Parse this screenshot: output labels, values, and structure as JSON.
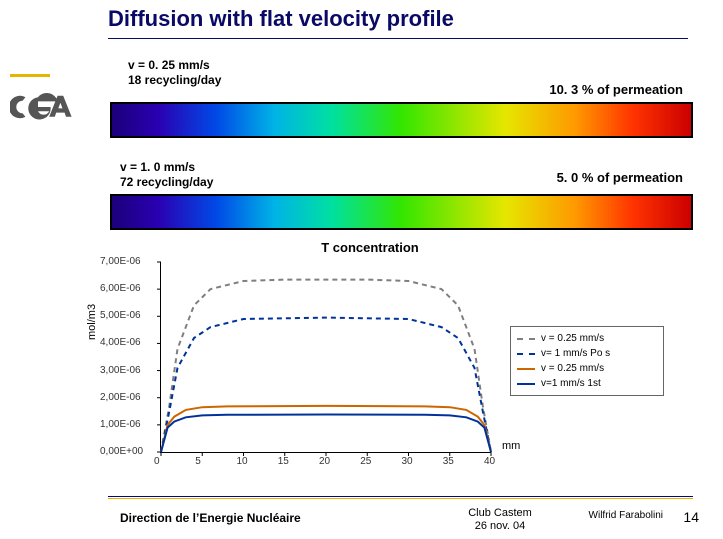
{
  "title": "Diffusion with flat velocity profile",
  "title_color": "#0a0a66",
  "logo": {
    "fill": "#555555"
  },
  "cases": [
    {
      "velocity": "v = 0. 25 mm/s",
      "recycling": "18 recycling/day",
      "permeation": "10. 3 % of permeation"
    },
    {
      "velocity": "v = 1. 0 mm/s",
      "recycling": "72 recycling/day",
      "permeation": "5. 0 % of permeation"
    }
  ],
  "spectrum": {
    "frame_color": "#000000",
    "stops": [
      "#1b007a",
      "#2a00b2",
      "#0049e6",
      "#00b3e6",
      "#00e0a0",
      "#33e600",
      "#e6e600",
      "#ff9900",
      "#ff3300",
      "#cc0000"
    ]
  },
  "chart": {
    "type": "line",
    "title": "T concentration",
    "ylabel": "mol/m3",
    "xunit": "mm",
    "x": [
      0,
      5,
      10,
      15,
      20,
      25,
      30,
      35,
      40
    ],
    "xlim": [
      0,
      40
    ],
    "ylim": [
      0,
      7e-06
    ],
    "yticks": [
      0,
      1e-06,
      2e-06,
      3e-06,
      4e-06,
      5e-06,
      6e-06,
      7e-06
    ],
    "ytick_labels": [
      "0,00E+00",
      "1,00E-06",
      "2,00E-06",
      "3,00E-06",
      "4,00E-06",
      "5,00E-06",
      "6,00E-06",
      "7,00E-06"
    ],
    "background_color": "#ffffff",
    "grid": false,
    "line_width": 2,
    "legend_border": "#666666",
    "series": [
      {
        "name": "v = 0.25 mm/s",
        "color": "#7f7f7f",
        "dash": true,
        "x": [
          0,
          1,
          2,
          4,
          6,
          10,
          15,
          20,
          25,
          30,
          34,
          36,
          38,
          39,
          40
        ],
        "y": [
          0.0,
          1.7e-06,
          3.8e-06,
          5.4e-06,
          6e-06,
          6.3e-06,
          6.35e-06,
          6.35e-06,
          6.35e-06,
          6.3e-06,
          6e-06,
          5.4e-06,
          3.8e-06,
          1.7e-06,
          0.0
        ]
      },
      {
        "name": "v= 1 mm/s Po s",
        "color": "#003399",
        "dash": true,
        "x": [
          0,
          1,
          2,
          4,
          6,
          10,
          20,
          30,
          34,
          36,
          38,
          39,
          40
        ],
        "y": [
          0.0,
          1.5e-06,
          3.1e-06,
          4.2e-06,
          4.6e-06,
          4.9e-06,
          4.95e-06,
          4.9e-06,
          4.6e-06,
          4.2e-06,
          3.1e-06,
          1.5e-06,
          0.0
        ]
      },
      {
        "name": "v = 0.25 mm/s",
        "color": "#cc6600",
        "dash": false,
        "x": [
          0,
          0.8,
          1.6,
          3,
          5,
          8,
          20,
          32,
          35,
          37,
          38.4,
          39.2,
          40
        ],
        "y": [
          0.0,
          1e-06,
          1.3e-06,
          1.55e-06,
          1.65e-06,
          1.68e-06,
          1.7e-06,
          1.68e-06,
          1.65e-06,
          1.55e-06,
          1.3e-06,
          1e-06,
          0.0
        ]
      },
      {
        "name": "v=1 mm/s 1st",
        "color": "#003399",
        "dash": false,
        "x": [
          0,
          0.8,
          1.6,
          3,
          5,
          8,
          20,
          32,
          35,
          37,
          38.4,
          39.2,
          40
        ],
        "y": [
          0.0,
          9e-07,
          1.12e-06,
          1.28e-06,
          1.35e-06,
          1.37e-06,
          1.38e-06,
          1.37e-06,
          1.35e-06,
          1.28e-06,
          1.12e-06,
          9e-07,
          0.0
        ]
      }
    ]
  },
  "footer": {
    "org": "Direction de l’Energie Nucléaire",
    "event": "Club Castem",
    "date": "26 nov. 04",
    "author": "Wilfrid Farabolini",
    "page": "14",
    "rule_color": "#0a0a66",
    "accent_color": "#e5b600"
  }
}
